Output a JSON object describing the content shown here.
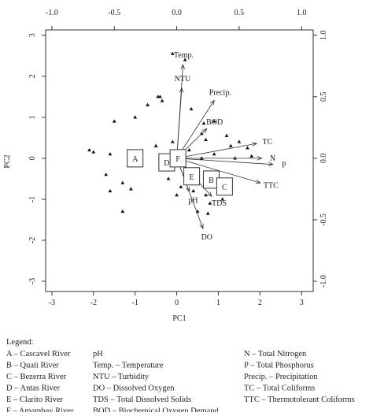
{
  "chart_data": {
    "type": "biplot",
    "xlabel": "PC1",
    "ylabel": "PC2",
    "xlim": [
      -3.15,
      3.28
    ],
    "ylim": [
      -3.25,
      3.13
    ],
    "xticks": [
      -3,
      -2,
      -1,
      0,
      1,
      2,
      3
    ],
    "yticks": [
      -3,
      -2,
      -1,
      0,
      1,
      2,
      3
    ],
    "x2lim": [
      -1.05,
      1.093
    ],
    "y2lim": [
      -1.083,
      1.043
    ],
    "x2ticks": [
      {
        "value": -1,
        "label": "-1.0"
      },
      -0.5,
      {
        "value": 0,
        "label": "0.0"
      },
      0.5,
      {
        "value": 1,
        "label": "1.0"
      }
    ],
    "y2ticks": [
      {
        "value": -1,
        "label": "-1.0"
      },
      -0.5,
      {
        "value": 0,
        "label": "0.0"
      },
      0.5,
      {
        "value": 1,
        "label": "1.0"
      }
    ],
    "points": {
      "x": [
        -0.1,
        0.2,
        -0.4,
        -0.45,
        -0.35,
        0.35,
        -0.7,
        -1.0,
        -1.5,
        0.65,
        0.9,
        0.6,
        1.2,
        0.7,
        1.5,
        1.3,
        1.7,
        -2.1,
        -2.0,
        -1.6,
        -0.5,
        -0.1,
        0.3,
        0.6,
        0.9,
        1.4,
        1.8,
        -1.7,
        -1.3,
        -1.6,
        -0.2,
        0.1,
        0.4,
        0.7,
        0.8,
        1.0,
        -1.1,
        -1.3,
        0.5,
        0.75,
        0.0,
        1.1
      ],
      "y": [
        2.55,
        2.4,
        1.5,
        1.5,
        1.4,
        1.2,
        1.3,
        1.0,
        0.9,
        0.85,
        0.9,
        0.6,
        0.55,
        0.45,
        0.4,
        0.3,
        0.25,
        0.2,
        0.15,
        0.1,
        0.3,
        0.4,
        0.2,
        0.0,
        0.1,
        0.0,
        0.05,
        -0.4,
        -0.6,
        -0.8,
        -0.5,
        -0.7,
        -0.8,
        -0.9,
        -1.1,
        -0.6,
        -0.75,
        -1.3,
        -1.3,
        -1.35,
        -0.9,
        -1.0
      ]
    },
    "loadings": [
      {
        "name": "Temp.",
        "x": 0.05,
        "y": 0.76
      },
      {
        "name": "NTU",
        "x": 0.04,
        "y": 0.57
      },
      {
        "name": "Precip.",
        "x": 0.3,
        "y": 0.47
      },
      {
        "name": "BOD",
        "x": 0.24,
        "y": 0.24
      },
      {
        "name": "TC",
        "x": 0.64,
        "y": 0.12
      },
      {
        "name": "N",
        "x": 0.68,
        "y": 0.0
      },
      {
        "name": "P",
        "x": 0.77,
        "y": -0.05
      },
      {
        "name": "TTC",
        "x": 0.67,
        "y": -0.2
      },
      {
        "name": "pH",
        "x": 0.1,
        "y": -0.27
      },
      {
        "name": "TDS",
        "x": 0.28,
        "y": -0.31
      },
      {
        "name": "DO",
        "x": 0.21,
        "y": -0.57
      }
    ],
    "groups": [
      {
        "label": "A",
        "x": -1.0,
        "y": 0.0
      },
      {
        "label": "D",
        "x": -0.24,
        "y": -0.1
      },
      {
        "label": "F",
        "x": 0.03,
        "y": 0.0
      },
      {
        "label": "E",
        "x": 0.36,
        "y": -0.44
      },
      {
        "label": "B",
        "x": 0.83,
        "y": -0.52
      },
      {
        "label": "C",
        "x": 1.15,
        "y": -0.69
      }
    ]
  },
  "legend": {
    "title": "Legend:",
    "columns": [
      [
        "A – Cascavel River",
        "B – Quati River",
        "C – Bezerra River",
        "D – Antas River",
        "E – Clarito River",
        "F – Amambay River"
      ],
      [
        "pH",
        "Temp. – Temperature",
        "NTU – Turbidity",
        "DO – Dissolved Oxygen",
        "TDS – Total Dissolved Solids",
        "BOD – Biochemical Oxygen Demand"
      ],
      [
        "N – Total Nitrogen",
        "P – Total Phosphorus",
        "Precip. – Precipitation",
        "TC – Total Coliforms",
        "TTC – Thermotolerant Coliforms"
      ]
    ]
  }
}
